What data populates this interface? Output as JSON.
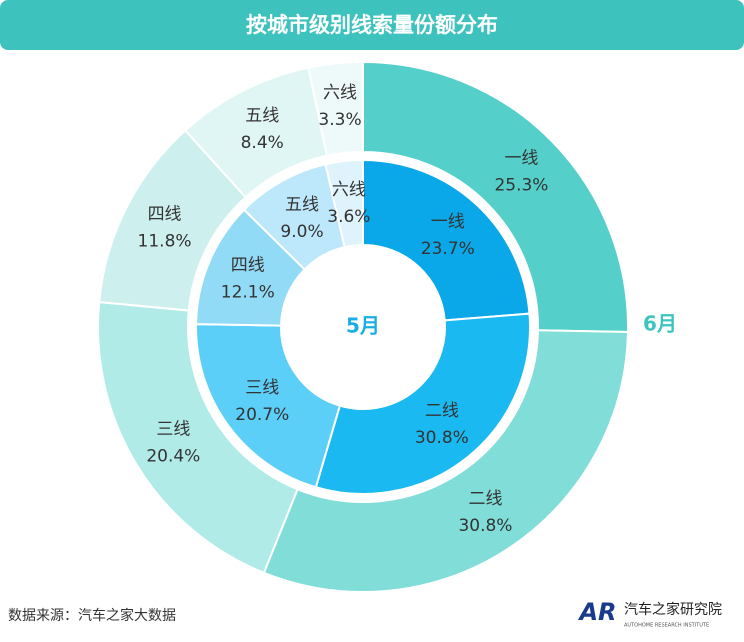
{
  "chart_data": {
    "type": "pie",
    "title": "按城市级别线索量份额分布",
    "categories": [
      "一线",
      "二线",
      "三线",
      "四线",
      "五线",
      "六线"
    ],
    "series": [
      {
        "name": "5月",
        "color": "#1aaee6",
        "values": [
          23.7,
          30.8,
          20.7,
          12.1,
          9.0,
          3.6
        ],
        "value_labels": [
          "23.7%",
          "30.8%",
          "20.7%",
          "12.1%",
          "9.0%",
          "3.6%"
        ],
        "colors": [
          "#0aa8e8",
          "#1bb9f1",
          "#5ccff8",
          "#92dbf7",
          "#bde8fb",
          "#def3fb"
        ]
      },
      {
        "name": "6月",
        "color": "#3cc4bf",
        "values": [
          25.3,
          30.8,
          20.4,
          11.8,
          8.4,
          3.3
        ],
        "value_labels": [
          "25.3%",
          "30.8%",
          "20.4%",
          "11.8%",
          "8.4%",
          "3.3%"
        ],
        "colors": [
          "#55cfca",
          "#80ddd8",
          "#b0ebe8",
          "#cdf0ef",
          "#e0f6f5",
          "#eefafa"
        ]
      }
    ]
  },
  "source": "数据来源：汽车之家大数据",
  "logo": {
    "mark": "AR",
    "name": "汽车之家研究院",
    "subtitle": "AUTOHOME RESEARCH INSTITUTE"
  }
}
